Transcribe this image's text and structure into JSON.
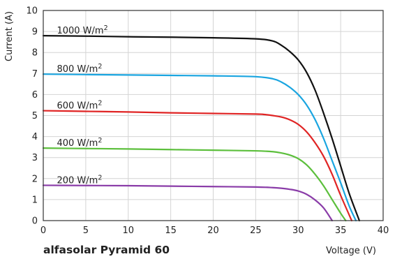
{
  "chart_data": {
    "type": "line",
    "title": "alfasolar Pyramid 60",
    "xlabel": "Voltage (V)",
    "ylabel": "Current (A)",
    "xlim": [
      0,
      40
    ],
    "ylim": [
      0,
      10
    ],
    "xticks": [
      "0",
      "5",
      "10",
      "15",
      "20",
      "25",
      "30",
      "35",
      "40"
    ],
    "yticks": [
      "0",
      "1",
      "2",
      "3",
      "4",
      "5",
      "6",
      "7",
      "8",
      "9",
      "10"
    ],
    "grid": true,
    "series": [
      {
        "name": "1000 W/m",
        "sup": "2",
        "color": "#111111",
        "x": [
          0,
          5,
          10,
          15,
          20,
          25,
          27,
          28,
          29,
          30,
          31,
          32,
          33,
          34,
          35,
          36,
          37.2
        ],
        "y": [
          8.8,
          8.78,
          8.75,
          8.73,
          8.7,
          8.65,
          8.55,
          8.35,
          8.05,
          7.65,
          7.05,
          6.2,
          5.1,
          3.9,
          2.6,
          1.3,
          0
        ]
      },
      {
        "name": "800 W/m",
        "sup": "2",
        "color": "#1aa5e0",
        "x": [
          0,
          5,
          10,
          15,
          20,
          25,
          27,
          28,
          29,
          30,
          31,
          32,
          33,
          34,
          35,
          36,
          36.8
        ],
        "y": [
          6.97,
          6.95,
          6.93,
          6.91,
          6.89,
          6.85,
          6.75,
          6.6,
          6.35,
          6.0,
          5.5,
          4.8,
          3.9,
          2.85,
          1.8,
          0.7,
          0
        ]
      },
      {
        "name": "600 W/m",
        "sup": "2",
        "color": "#e02424",
        "x": [
          0,
          5,
          10,
          15,
          20,
          25,
          26,
          27,
          28,
          29,
          30,
          31,
          32,
          33,
          34,
          35,
          36.3
        ],
        "y": [
          5.23,
          5.2,
          5.17,
          5.13,
          5.1,
          5.07,
          5.05,
          5.0,
          4.93,
          4.8,
          4.58,
          4.22,
          3.7,
          3.05,
          2.2,
          1.2,
          0
        ]
      },
      {
        "name": "400 W/m",
        "sup": "2",
        "color": "#5cbf3c",
        "x": [
          0,
          5,
          10,
          15,
          20,
          25,
          27,
          28,
          29,
          30,
          31,
          32,
          33,
          34,
          35,
          35.6
        ],
        "y": [
          3.45,
          3.43,
          3.41,
          3.38,
          3.35,
          3.32,
          3.28,
          3.22,
          3.12,
          2.95,
          2.65,
          2.2,
          1.65,
          1.0,
          0.35,
          0
        ]
      },
      {
        "name": "200 W/m",
        "sup": "2",
        "color": "#8a3ca8",
        "x": [
          0,
          5,
          10,
          15,
          20,
          25,
          27,
          28,
          29,
          30,
          31,
          32,
          33,
          34
        ],
        "y": [
          1.68,
          1.67,
          1.66,
          1.64,
          1.62,
          1.6,
          1.57,
          1.54,
          1.49,
          1.41,
          1.25,
          0.98,
          0.6,
          0
        ]
      }
    ]
  }
}
